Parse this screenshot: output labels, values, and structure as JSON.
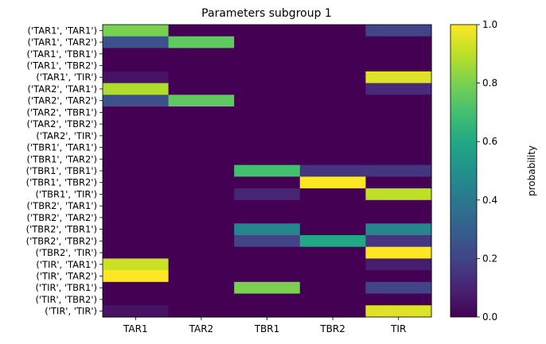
{
  "chart_data": {
    "type": "heatmap",
    "title": "Parameters subgroup 1",
    "xlabel": "",
    "ylabel": "",
    "x_categories": [
      "TAR1",
      "TAR2",
      "TBR1",
      "TBR2",
      "TIR"
    ],
    "y_categories": [
      "('TAR1', 'TAR1')",
      "('TAR1', 'TAR2')",
      "('TAR1', 'TBR1')",
      "('TAR1', 'TBR2')",
      "('TAR1', 'TIR')",
      "('TAR2', 'TAR1')",
      "('TAR2', 'TAR2')",
      "('TAR2', 'TBR1')",
      "('TAR2', 'TBR2')",
      "('TAR2', 'TIR')",
      "('TBR1', 'TAR1')",
      "('TBR1', 'TAR2')",
      "('TBR1', 'TBR1')",
      "('TBR1', 'TBR2')",
      "('TBR1', 'TIR')",
      "('TBR2', 'TAR1')",
      "('TBR2', 'TAR2')",
      "('TBR2', 'TBR1')",
      "('TBR2', 'TBR2')",
      "('TBR2', 'TIR')",
      "('TIR', 'TAR1')",
      "('TIR', 'TAR2')",
      "('TIR', 'TBR1')",
      "('TIR', 'TBR2')",
      "('TIR', 'TIR')"
    ],
    "values": [
      [
        0.8,
        0.0,
        0.0,
        0.0,
        0.2
      ],
      [
        0.25,
        0.75,
        0.0,
        0.0,
        0.0
      ],
      [
        0.0,
        0.0,
        0.0,
        0.0,
        0.0
      ],
      [
        0.0,
        0.0,
        0.0,
        0.0,
        0.0
      ],
      [
        0.05,
        0.0,
        0.0,
        0.0,
        0.95
      ],
      [
        0.88,
        0.0,
        0.0,
        0.0,
        0.12
      ],
      [
        0.25,
        0.75,
        0.0,
        0.0,
        0.0
      ],
      [
        0.0,
        0.0,
        0.0,
        0.0,
        0.0
      ],
      [
        0.0,
        0.0,
        0.0,
        0.0,
        0.0
      ],
      [
        0.0,
        0.0,
        0.0,
        0.0,
        0.0
      ],
      [
        0.0,
        0.0,
        0.0,
        0.0,
        0.0
      ],
      [
        0.0,
        0.0,
        0.0,
        0.0,
        0.0
      ],
      [
        0.0,
        0.0,
        0.7,
        0.15,
        0.15
      ],
      [
        0.0,
        0.0,
        0.0,
        1.0,
        0.0
      ],
      [
        0.0,
        0.0,
        0.1,
        0.0,
        0.9
      ],
      [
        0.0,
        0.0,
        0.0,
        0.0,
        0.0
      ],
      [
        0.0,
        0.0,
        0.0,
        0.0,
        0.0
      ],
      [
        0.0,
        0.0,
        0.45,
        0.0,
        0.45
      ],
      [
        0.0,
        0.0,
        0.2,
        0.6,
        0.15
      ],
      [
        0.0,
        0.0,
        0.0,
        0.0,
        1.0
      ],
      [
        0.92,
        0.0,
        0.0,
        0.0,
        0.08
      ],
      [
        1.0,
        0.0,
        0.0,
        0.0,
        0.0
      ],
      [
        0.0,
        0.0,
        0.8,
        0.0,
        0.2
      ],
      [
        0.0,
        0.0,
        0.0,
        0.0,
        0.0
      ],
      [
        0.05,
        0.0,
        0.0,
        0.0,
        0.95
      ]
    ],
    "colormap": "viridis",
    "vmin": 0.0,
    "vmax": 1.0,
    "colorbar": {
      "label": "probability",
      "ticks": [
        "0.0",
        "0.2",
        "0.4",
        "0.6",
        "0.8",
        "1.0"
      ]
    },
    "grid": false
  }
}
